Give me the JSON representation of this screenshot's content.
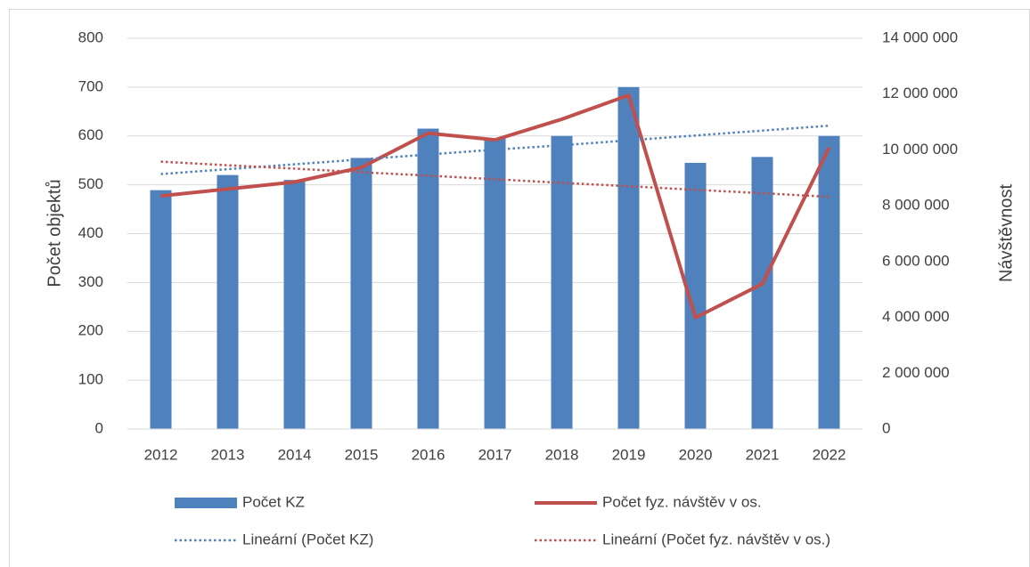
{
  "chart_data": {
    "type": "bar",
    "categories": [
      "2012",
      "2013",
      "2014",
      "2015",
      "2016",
      "2017",
      "2018",
      "2019",
      "2020",
      "2021",
      "2022"
    ],
    "series": [
      {
        "name": "Počet KZ",
        "color": "#4f81bd",
        "kind": "bar",
        "values": [
          489,
          520,
          510,
          555,
          615,
          595,
          600,
          700,
          545,
          557,
          600
        ]
      },
      {
        "name": "Počet fyz. návštěv v os.",
        "color": "#c0504d",
        "kind": "line",
        "axis": "y2",
        "values": [
          8350000,
          8600000,
          8850000,
          9370000,
          10600000,
          10360000,
          11100000,
          11960000,
          3990000,
          5200000,
          10080000
        ]
      },
      {
        "name": "Lineární (Počet KZ)",
        "color": "#4f81bd",
        "kind": "line",
        "dashed": true,
        "values": [
          522,
          532,
          542,
          552,
          562,
          572,
          581,
          591,
          601,
          611,
          621
        ]
      },
      {
        "name": "Lineární (Počet fyz. návštěv v os.)",
        "color": "#c0504d",
        "kind": "line",
        "dashed": true,
        "axis": "y2",
        "values": [
          9580000,
          9450000,
          9330000,
          9200000,
          9080000,
          8950000,
          8820000,
          8700000,
          8570000,
          8450000,
          8320000
        ]
      }
    ],
    "ylabel": "Počet objektů",
    "y2label": "Návštěvnost",
    "ylim": [
      0,
      800
    ],
    "yticks": [
      0,
      100,
      200,
      300,
      400,
      500,
      600,
      700,
      800
    ],
    "y2lim": [
      0,
      14000000
    ],
    "y2ticks": [
      0,
      {
        "value": 2000000,
        "label": "2 000 000"
      },
      {
        "value": 4000000,
        "label": "4 000 000"
      },
      {
        "value": 6000000,
        "label": "6 000 000"
      },
      {
        "value": 8000000,
        "label": "8 000 000"
      },
      {
        "value": 10000000,
        "label": "10 000 000"
      },
      {
        "value": 12000000,
        "label": "12 000 000"
      },
      {
        "value": 14000000,
        "label": "14 000 000"
      }
    ],
    "grid": true,
    "legend": "bottom"
  }
}
